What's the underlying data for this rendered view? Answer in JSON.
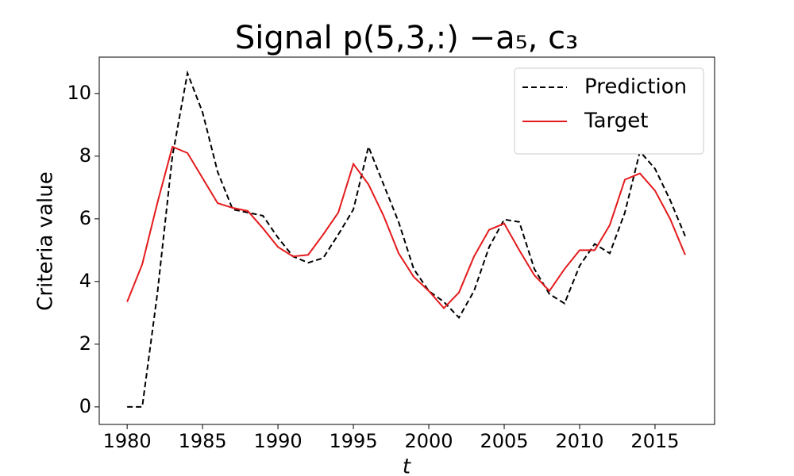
{
  "chart_data": {
    "type": "line",
    "title": "Signal p(5,3,:) −a₅, c₃",
    "xlabel": "t",
    "ylabel": "Criteria value",
    "x": [
      1980,
      1981,
      1982,
      1983,
      1984,
      1985,
      1986,
      1987,
      1988,
      1989,
      1990,
      1991,
      1992,
      1993,
      1994,
      1995,
      1996,
      1997,
      1998,
      1999,
      2000,
      2001,
      2002,
      2003,
      2004,
      2005,
      2006,
      2007,
      2008,
      2009,
      2010,
      2011,
      2012,
      2013,
      2014,
      2015,
      2016,
      2017
    ],
    "series": [
      {
        "name": "Prediction",
        "color": "#000000",
        "linestyle": "dashed",
        "values": [
          0,
          0,
          3.6,
          8.0,
          10.65,
          9.4,
          7.5,
          6.3,
          6.2,
          6.1,
          5.4,
          4.8,
          4.6,
          4.75,
          5.5,
          6.3,
          8.3,
          7.1,
          5.9,
          4.4,
          3.7,
          3.35,
          2.85,
          3.7,
          5.1,
          5.98,
          5.9,
          4.4,
          3.6,
          3.3,
          4.5,
          5.2,
          4.9,
          6.2,
          8.15,
          7.6,
          6.6,
          5.45
        ]
      },
      {
        "name": "Target",
        "color": "#e41a1c",
        "linestyle": "solid",
        "values": [
          3.35,
          4.55,
          6.5,
          8.3,
          8.1,
          7.3,
          6.5,
          6.35,
          6.25,
          5.7,
          5.1,
          4.8,
          4.85,
          5.5,
          6.2,
          7.75,
          7.1,
          6.1,
          4.9,
          4.15,
          3.7,
          3.15,
          3.65,
          4.8,
          5.65,
          5.85,
          5.0,
          4.2,
          3.7,
          4.4,
          5.0,
          5.0,
          5.8,
          7.25,
          7.45,
          6.9,
          6.0,
          4.85
        ]
      }
    ],
    "xlim": [
      1978.15,
      2018.95
    ],
    "ylim": [
      -0.56,
      11.16
    ],
    "xticks": [
      1980,
      1985,
      1990,
      1995,
      2000,
      2005,
      2010,
      2015
    ],
    "yticks": [
      0,
      2,
      4,
      6,
      8,
      10
    ],
    "grid": false,
    "legend": "upper right"
  }
}
